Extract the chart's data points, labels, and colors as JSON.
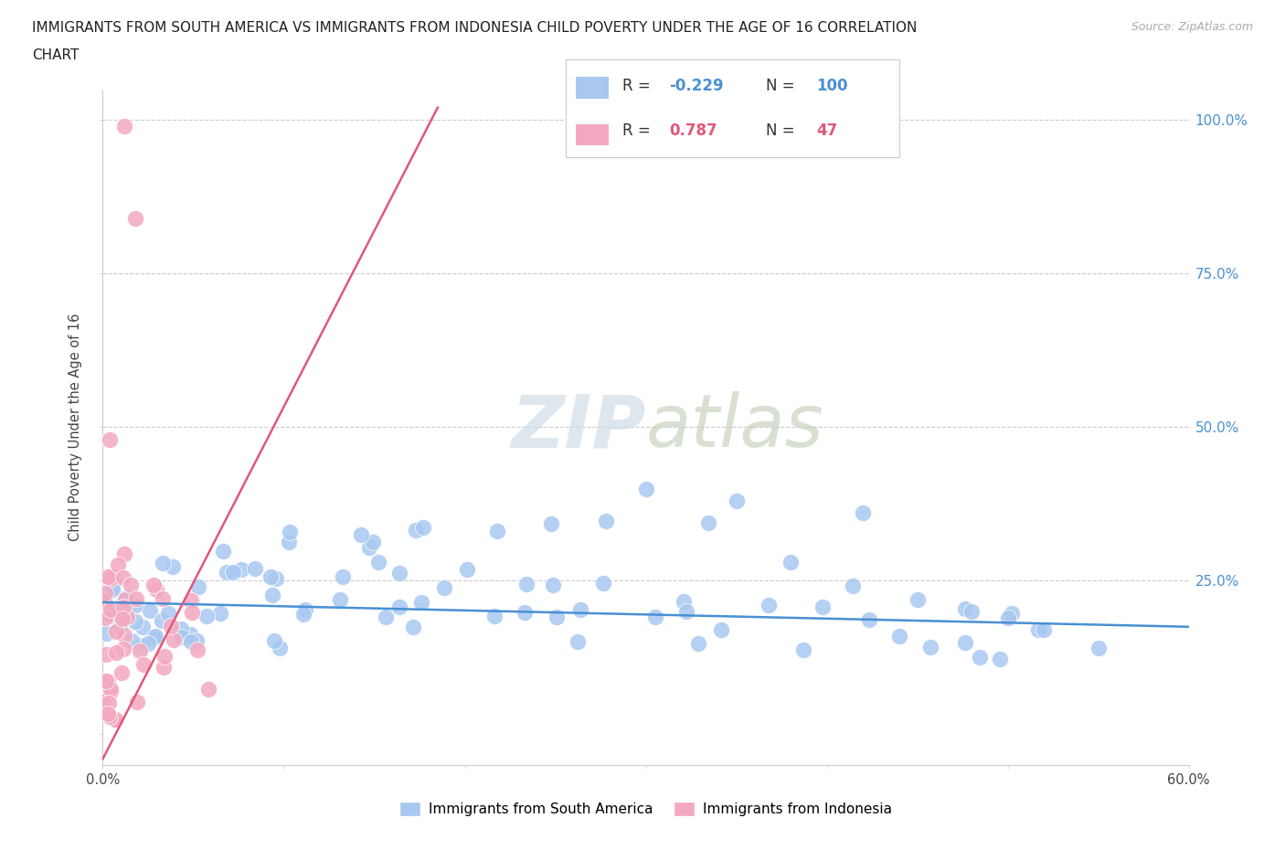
{
  "title_line1": "IMMIGRANTS FROM SOUTH AMERICA VS IMMIGRANTS FROM INDONESIA CHILD POVERTY UNDER THE AGE OF 16 CORRELATION",
  "title_line2": "CHART",
  "source": "Source: ZipAtlas.com",
  "ylabel": "Child Poverty Under the Age of 16",
  "xlim": [
    0.0,
    0.6
  ],
  "ylim": [
    -0.05,
    1.05
  ],
  "color_blue": "#a8c8f0",
  "color_pink": "#f4a8c0",
  "color_blue_line": "#4a90d4",
  "color_pink_line": "#e05878",
  "legend_label_blue": "Immigrants from South America",
  "legend_label_pink": "Immigrants from Indonesia",
  "watermark_part1": "ZIP",
  "watermark_part2": "atlas",
  "blue_line_x0": 0.0,
  "blue_line_x1": 0.6,
  "blue_line_y0": 0.215,
  "blue_line_y1": 0.175,
  "pink_line_x0": 0.0,
  "pink_line_x1": 0.185,
  "pink_line_y0": -0.04,
  "pink_line_y1": 1.02
}
